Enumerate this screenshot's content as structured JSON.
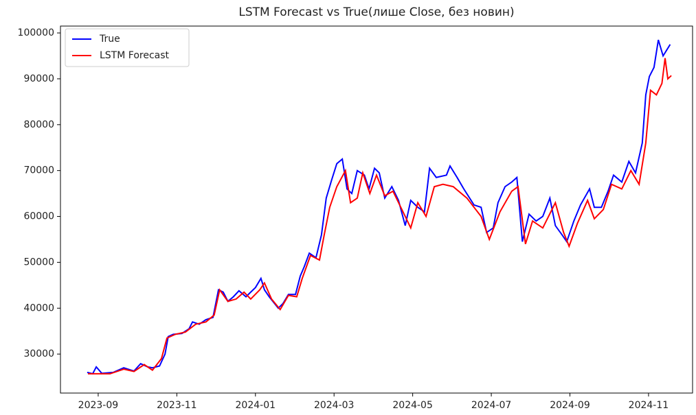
{
  "chart_data": {
    "type": "line",
    "title": "LSTM Forecast vs True(лише Close, без новин)",
    "xlim": [
      7.04,
      23.12
    ],
    "xticks": [
      {
        "value": 8,
        "label": "2023-09"
      },
      {
        "value": 10,
        "label": "2023-11"
      },
      {
        "value": 12,
        "label": "2024-01"
      },
      {
        "value": 14,
        "label": "2024-03"
      },
      {
        "value": 16,
        "label": "2024-05"
      },
      {
        "value": 18,
        "label": "2024-07"
      },
      {
        "value": 20,
        "label": "2024-09"
      },
      {
        "value": 22,
        "label": "2024-11"
      }
    ],
    "ylim": [
      21500,
      101500
    ],
    "yticks": [
      30000,
      40000,
      50000,
      60000,
      70000,
      80000,
      90000,
      100000
    ],
    "legend": "upper left",
    "series": [
      {
        "name": "True",
        "color": "#0000ff",
        "x": [
          7.72,
          7.86,
          7.95,
          8.09,
          8.38,
          8.65,
          8.91,
          9.08,
          9.26,
          9.38,
          9.56,
          9.7,
          9.78,
          9.91,
          10.13,
          10.31,
          10.4,
          10.57,
          10.74,
          10.92,
          11.06,
          11.18,
          11.3,
          11.44,
          11.58,
          11.76,
          11.88,
          12.0,
          12.14,
          12.23,
          12.35,
          12.58,
          12.7,
          12.84,
          13.02,
          13.14,
          13.24,
          13.37,
          13.54,
          13.68,
          13.8,
          13.94,
          14.07,
          14.21,
          14.33,
          14.45,
          14.59,
          14.77,
          14.89,
          15.03,
          15.15,
          15.29,
          15.47,
          15.64,
          15.81,
          15.95,
          16.13,
          16.3,
          16.43,
          16.6,
          16.86,
          16.95,
          17.13,
          17.3,
          17.56,
          17.74,
          17.88,
          18.05,
          18.17,
          18.35,
          18.52,
          18.65,
          18.79,
          18.96,
          19.14,
          19.31,
          19.49,
          19.63,
          19.8,
          19.92,
          20.1,
          20.27,
          20.5,
          20.62,
          20.8,
          20.97,
          21.11,
          21.32,
          21.5,
          21.67,
          21.84,
          21.93,
          22.02,
          22.14,
          22.25,
          22.37,
          22.55
        ],
        "values": [
          26000,
          25700,
          27200,
          25800,
          26000,
          27000,
          26300,
          27900,
          27200,
          27000,
          27400,
          30000,
          33800,
          34300,
          34500,
          35500,
          37000,
          36500,
          37500,
          38000,
          44000,
          43500,
          41500,
          42500,
          43800,
          42500,
          43500,
          44500,
          46500,
          44000,
          42500,
          40000,
          41000,
          43000,
          43000,
          47000,
          49000,
          52000,
          51000,
          56000,
          64000,
          68000,
          71500,
          72500,
          66000,
          65000,
          70000,
          69000,
          66000,
          70500,
          69500,
          64000,
          66500,
          63500,
          58000,
          63500,
          62000,
          61000,
          70500,
          68500,
          69000,
          71000,
          68500,
          66000,
          62500,
          62000,
          56500,
          57500,
          63000,
          66500,
          67500,
          68500,
          54500,
          60500,
          59000,
          60000,
          64000,
          58000,
          56000,
          54500,
          59000,
          62500,
          66000,
          62000,
          62000,
          65500,
          69000,
          67500,
          72000,
          69500,
          76000,
          86500,
          90500,
          92500,
          98500,
          95000,
          97500
        ]
      },
      {
        "name": "LSTM Forecast",
        "color": "#ff0000",
        "x": [
          7.74,
          8.03,
          8.3,
          8.65,
          8.91,
          9.17,
          9.38,
          9.61,
          9.75,
          9.96,
          10.22,
          10.48,
          10.74,
          10.95,
          11.09,
          11.3,
          11.51,
          11.71,
          11.88,
          12.11,
          12.23,
          12.41,
          12.63,
          12.84,
          13.05,
          13.19,
          13.4,
          13.63,
          13.75,
          13.89,
          14.07,
          14.29,
          14.42,
          14.59,
          14.73,
          14.91,
          15.08,
          15.29,
          15.5,
          15.81,
          15.95,
          16.13,
          16.34,
          16.55,
          16.77,
          17.03,
          17.38,
          17.74,
          17.95,
          18.22,
          18.52,
          18.68,
          18.87,
          19.05,
          19.31,
          19.63,
          19.84,
          19.98,
          20.19,
          20.45,
          20.62,
          20.85,
          21.06,
          21.32,
          21.55,
          21.76,
          21.93,
          22.05,
          22.2,
          22.34,
          22.42,
          22.49,
          22.58
        ],
        "values": [
          25700,
          25700,
          25700,
          26700,
          26200,
          27700,
          26500,
          29000,
          33500,
          34300,
          34800,
          36500,
          37000,
          38500,
          44000,
          41500,
          42000,
          43500,
          42000,
          44000,
          45500,
          42000,
          39700,
          42800,
          42500,
          46500,
          51500,
          50500,
          56000,
          62000,
          66500,
          70000,
          63000,
          64000,
          69500,
          65000,
          69000,
          64500,
          65500,
          60000,
          57500,
          63000,
          60000,
          66500,
          67000,
          66500,
          64000,
          60000,
          55000,
          61000,
          65500,
          66500,
          54000,
          59000,
          57500,
          63000,
          56500,
          53500,
          58500,
          63500,
          59500,
          61500,
          67000,
          66000,
          70000,
          67000,
          76000,
          87500,
          86500,
          89000,
          94500,
          90000,
          90700
        ]
      }
    ]
  }
}
